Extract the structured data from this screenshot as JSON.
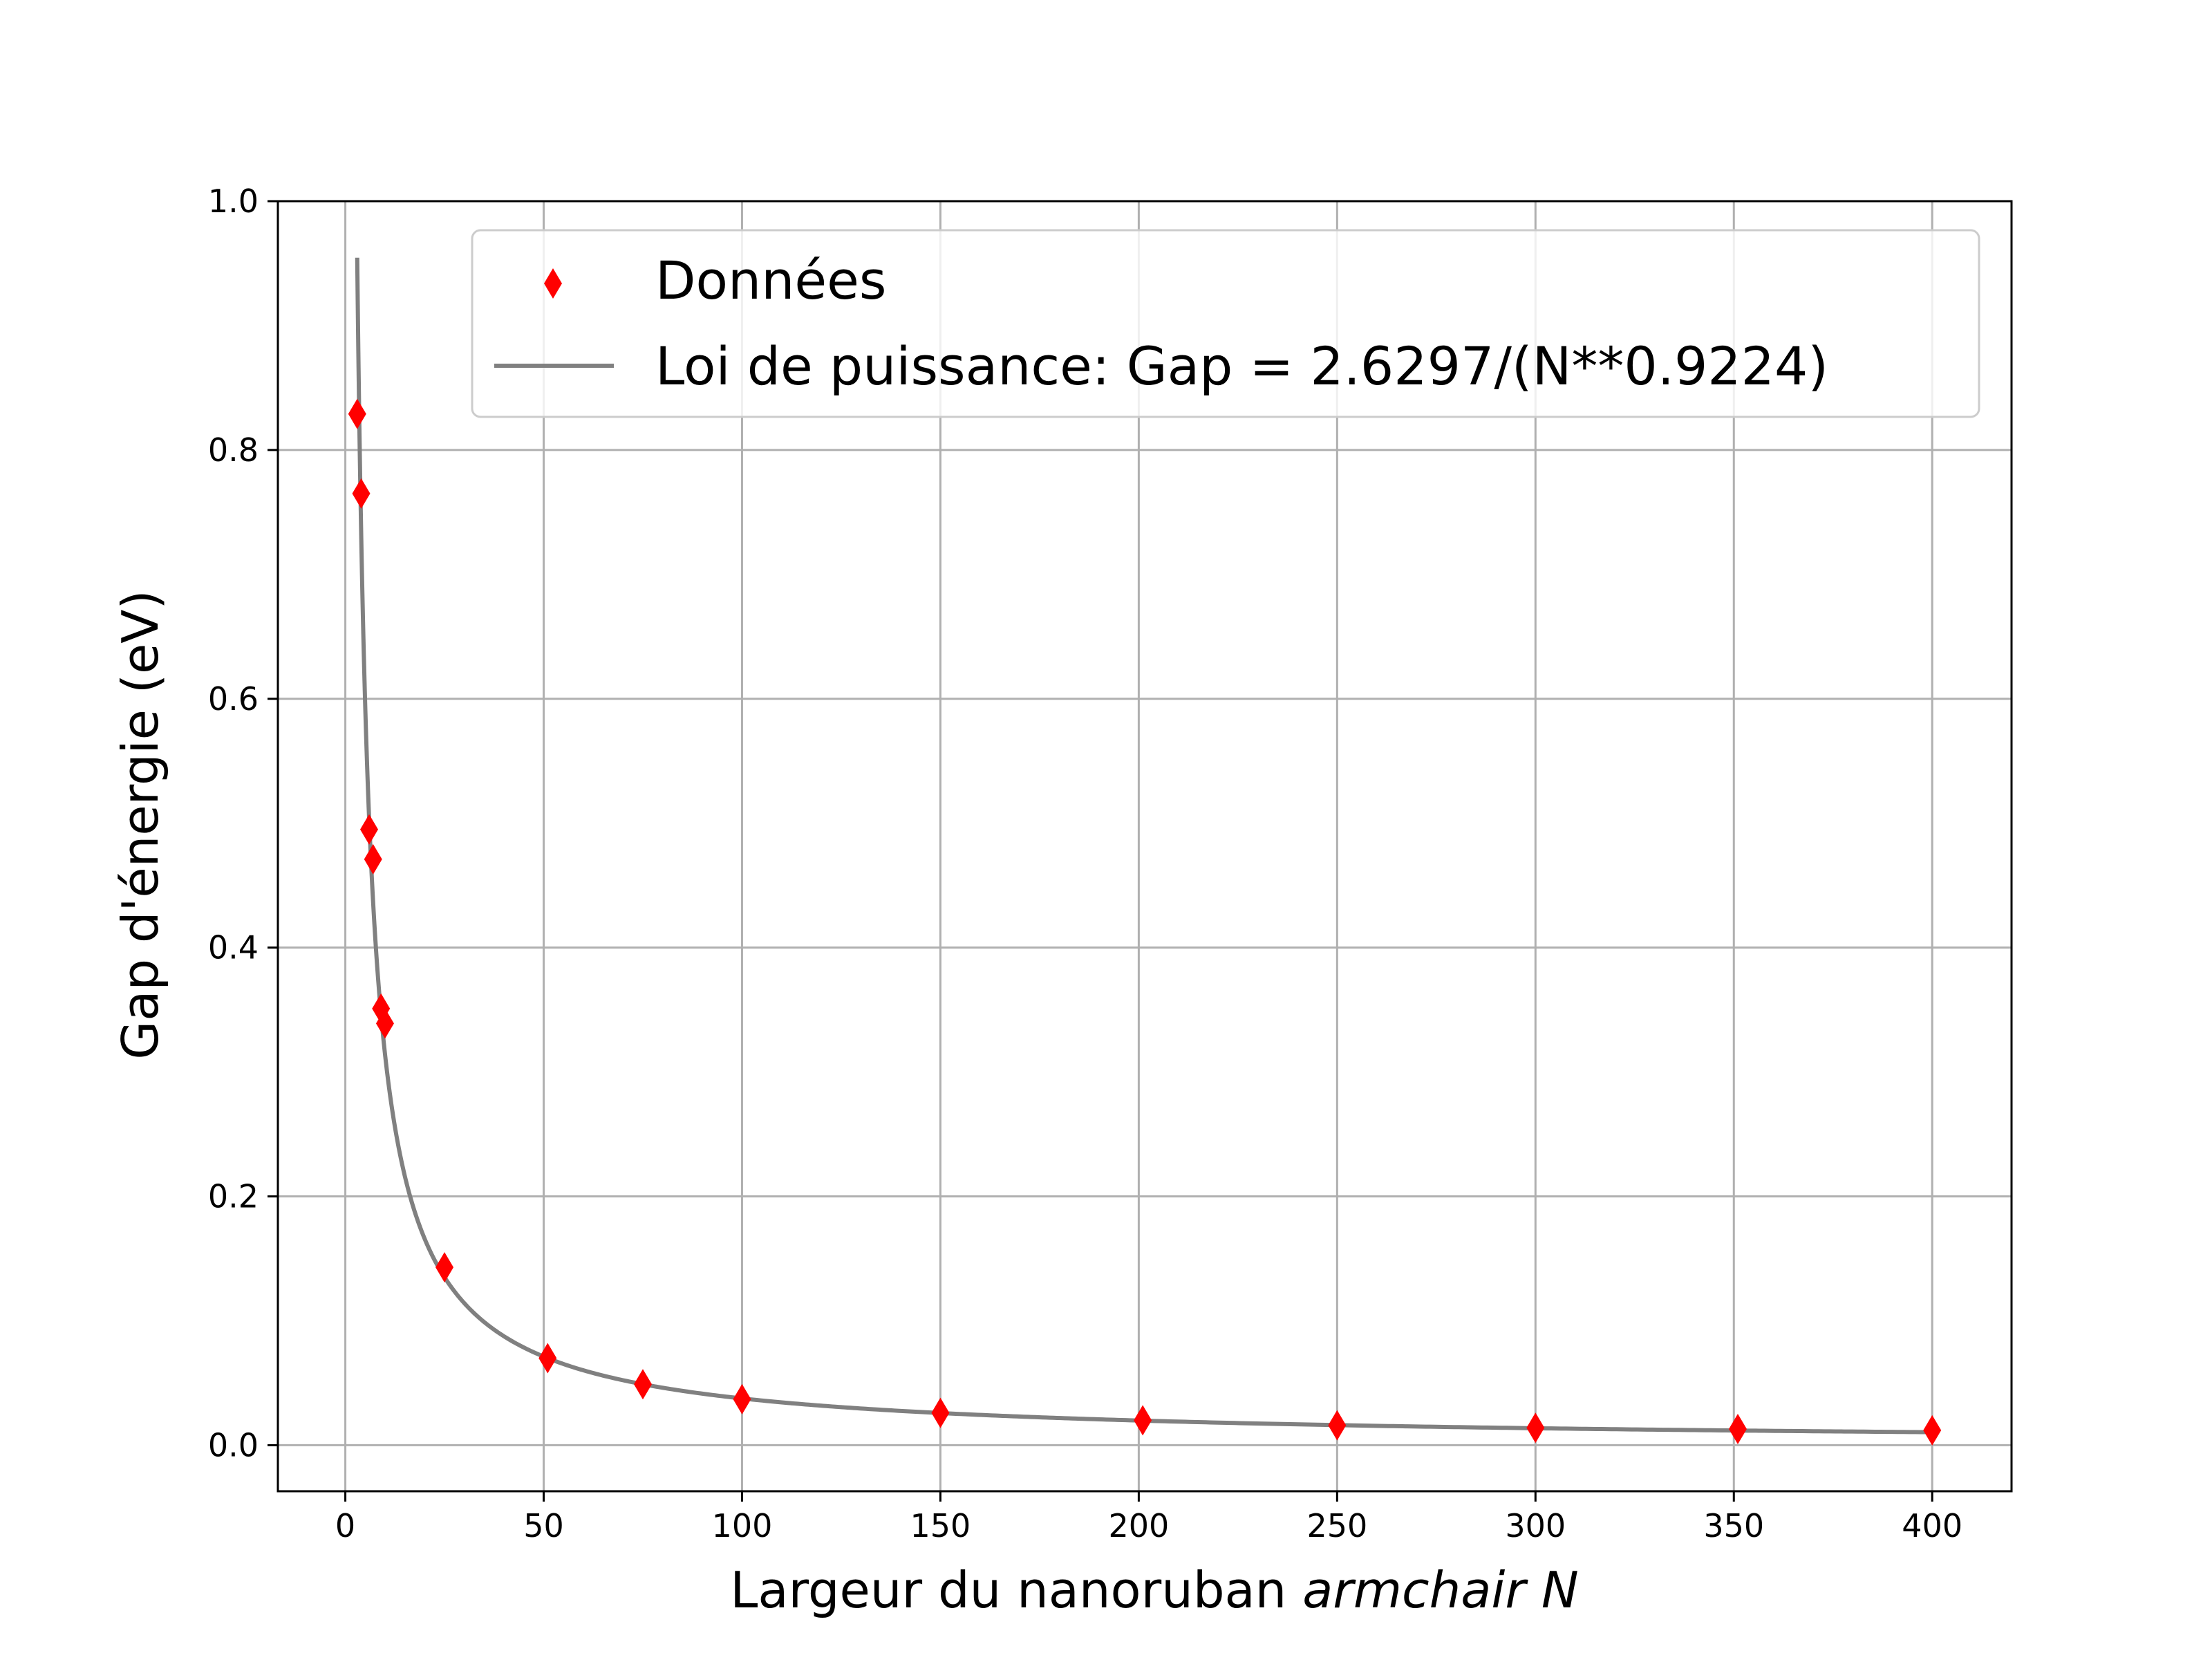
{
  "chart_data": {
    "type": "scatter",
    "xlabel": "Largeur du nanoruban",
    "xlabel_italic": "armchair N",
    "ylabel": "Gap d'énergie (eV)",
    "xlim": [
      -17,
      420
    ],
    "ylim": [
      -0.037,
      1.0
    ],
    "xticks": [
      0,
      50,
      100,
      150,
      200,
      250,
      300,
      350,
      400
    ],
    "yticks": [
      0.0,
      0.2,
      0.4,
      0.6,
      0.8,
      1.0
    ],
    "xtick_labels": [
      "0",
      "50",
      "100",
      "150",
      "200",
      "250",
      "300",
      "350",
      "400"
    ],
    "ytick_labels": [
      "0.0",
      "0.2",
      "0.4",
      "0.6",
      "0.8",
      "1.0"
    ],
    "grid": true,
    "legend_position": "top-right",
    "series": [
      {
        "name": "Données",
        "kind": "scatter",
        "marker": "thin_diamond",
        "color": "#ff0000",
        "x": [
          3,
          4,
          6,
          7,
          9,
          10,
          25,
          51,
          75,
          100,
          150,
          201,
          250,
          300,
          351,
          400
        ],
        "y": [
          0.829,
          0.765,
          0.495,
          0.471,
          0.351,
          0.339,
          0.143,
          0.07,
          0.049,
          0.037,
          0.026,
          0.02,
          0.016,
          0.014,
          0.013,
          0.012
        ]
      },
      {
        "name": "Loi de puissance: Gap = 2.6297/(N**0.9224)",
        "kind": "line",
        "color": "#808080",
        "function": {
          "a": 2.6297,
          "b": 0.9224
        },
        "x_range": [
          3,
          400
        ]
      }
    ]
  }
}
